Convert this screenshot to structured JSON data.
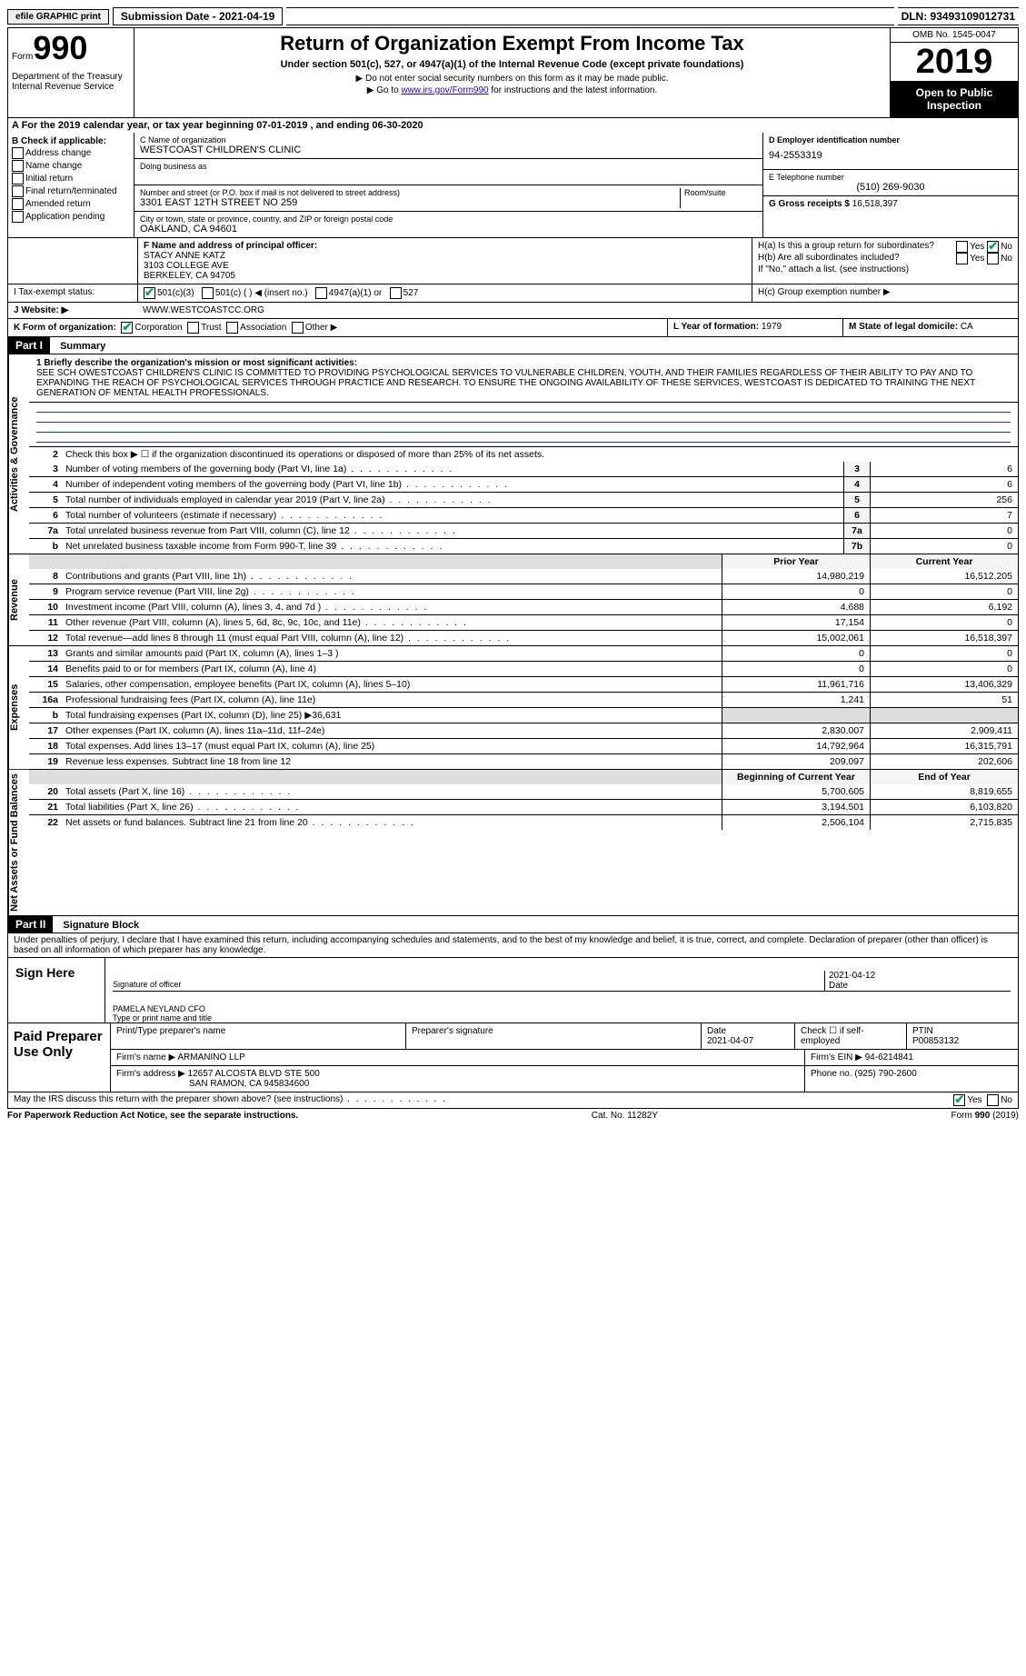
{
  "topbar": {
    "efile": "efile",
    "graphic": "GRAPHIC",
    "print": "print",
    "submission": "Submission Date - 2021-04-19",
    "dln": "DLN: 93493109012731"
  },
  "header": {
    "form_word": "Form",
    "form_num": "990",
    "dept": "Department of the Treasury\nInternal Revenue Service",
    "title": "Return of Organization Exempt From Income Tax",
    "subtitle": "Under section 501(c), 527, or 4947(a)(1) of the Internal Revenue Code (except private foundations)",
    "note1": "Do not enter social security numbers on this form as it may be made public.",
    "note2_a": "Go to ",
    "note2_link": "www.irs.gov/Form990",
    "note2_b": " for instructions and the latest information.",
    "omb": "OMB No. 1545-0047",
    "year": "2019",
    "open": "Open to Public Inspection"
  },
  "period": "A For the 2019 calendar year, or tax year beginning 07-01-2019    , and ending 06-30-2020",
  "boxB": {
    "title": "B Check if applicable:",
    "items": [
      "Address change",
      "Name change",
      "Initial return",
      "Final return/terminated",
      "Amended return",
      "Application pending"
    ]
  },
  "boxC": {
    "label": "C Name of organization",
    "name": "WESTCOAST CHILDREN'S CLINIC",
    "dba_label": "Doing business as",
    "addr_label": "Number and street (or P.O. box if mail is not delivered to street address)",
    "room_label": "Room/suite",
    "addr": "3301 EAST 12TH STREET NO 259",
    "city_label": "City or town, state or province, country, and ZIP or foreign postal code",
    "city": "OAKLAND, CA  94601"
  },
  "boxD": {
    "label": "D Employer identification number",
    "val": "94-2553319"
  },
  "boxE": {
    "label": "E Telephone number",
    "val": "(510) 269-9030"
  },
  "boxG": {
    "label": "G Gross receipts $ ",
    "val": "16,518,397"
  },
  "boxF": {
    "label": "F Name and address of principal officer:",
    "name": "STACY ANNE KATZ",
    "addr1": "3103 COLLEGE AVE",
    "addr2": "BERKELEY, CA  94705"
  },
  "boxH": {
    "a": "H(a) Is this a group return for subordinates?",
    "b": "H(b) Are all subordinates included?",
    "ifno": "If \"No,\" attach a list. (see instructions)",
    "c": "H(c) Group exemption number ▶"
  },
  "boxI": {
    "label": "I   Tax-exempt status:",
    "opts": [
      "501(c)(3)",
      "501(c) (   ) ◀ (insert no.)",
      "4947(a)(1) or",
      "527"
    ]
  },
  "boxJ": {
    "label": "J   Website: ▶",
    "val": "WWW.WESTCOASTCC.ORG"
  },
  "boxK": {
    "label": "K Form of organization:",
    "opts": [
      "Corporation",
      "Trust",
      "Association",
      "Other ▶"
    ]
  },
  "boxL": {
    "label": "L Year of formation: ",
    "val": "1979"
  },
  "boxM": {
    "label": "M State of legal domicile: ",
    "val": "CA"
  },
  "partI": {
    "title": "Part I",
    "subtitle": "Summary",
    "line1_label": "1  Briefly describe the organization's mission or most significant activities:",
    "mission": "SEE SCH OWESTCOAST CHILDREN'S CLINIC IS COMMITTED TO PROVIDING PSYCHOLOGICAL SERVICES TO VULNERABLE CHILDREN, YOUTH, AND THEIR FAMILIES REGARDLESS OF THEIR ABILITY TO PAY AND TO EXPANDING THE REACH OF PSYCHOLOGICAL SERVICES THROUGH PRACTICE AND RESEARCH. TO ENSURE THE ONGOING AVAILABILITY OF THESE SERVICES, WESTCOAST IS DEDICATED TO TRAINING THE NEXT GENERATION OF MENTAL HEALTH PROFESSIONALS.",
    "line2": "Check this box ▶ ☐ if the organization discontinued its operations or disposed of more than 25% of its net assets."
  },
  "vtabs": {
    "gov": "Activities & Governance",
    "rev": "Revenue",
    "exp": "Expenses",
    "net": "Net Assets or Fund Balances"
  },
  "gov_lines": [
    {
      "n": "3",
      "d": "Number of voting members of the governing body (Part VI, line 1a)",
      "box": "3",
      "v": "6"
    },
    {
      "n": "4",
      "d": "Number of independent voting members of the governing body (Part VI, line 1b)",
      "box": "4",
      "v": "6"
    },
    {
      "n": "5",
      "d": "Total number of individuals employed in calendar year 2019 (Part V, line 2a)",
      "box": "5",
      "v": "256"
    },
    {
      "n": "6",
      "d": "Total number of volunteers (estimate if necessary)",
      "box": "6",
      "v": "7"
    },
    {
      "n": "7a",
      "d": "Total unrelated business revenue from Part VIII, column (C), line 12",
      "box": "7a",
      "v": "0"
    },
    {
      "n": "b",
      "d": "Net unrelated business taxable income from Form 990-T, line 39",
      "box": "7b",
      "v": "0"
    }
  ],
  "col_hdrs": {
    "prior": "Prior Year",
    "current": "Current Year"
  },
  "rev_lines": [
    {
      "n": "8",
      "d": "Contributions and grants (Part VIII, line 1h)",
      "p": "14,980,219",
      "c": "16,512,205"
    },
    {
      "n": "9",
      "d": "Program service revenue (Part VIII, line 2g)",
      "p": "0",
      "c": "0"
    },
    {
      "n": "10",
      "d": "Investment income (Part VIII, column (A), lines 3, 4, and 7d )",
      "p": "4,688",
      "c": "6,192"
    },
    {
      "n": "11",
      "d": "Other revenue (Part VIII, column (A), lines 5, 6d, 8c, 9c, 10c, and 11e)",
      "p": "17,154",
      "c": "0"
    },
    {
      "n": "12",
      "d": "Total revenue—add lines 8 through 11 (must equal Part VIII, column (A), line 12)",
      "p": "15,002,061",
      "c": "16,518,397"
    }
  ],
  "exp_lines": [
    {
      "n": "13",
      "d": "Grants and similar amounts paid (Part IX, column (A), lines 1–3 )",
      "p": "0",
      "c": "0"
    },
    {
      "n": "14",
      "d": "Benefits paid to or for members (Part IX, column (A), line 4)",
      "p": "0",
      "c": "0"
    },
    {
      "n": "15",
      "d": "Salaries, other compensation, employee benefits (Part IX, column (A), lines 5–10)",
      "p": "11,961,716",
      "c": "13,406,329"
    },
    {
      "n": "16a",
      "d": "Professional fundraising fees (Part IX, column (A), line 11e)",
      "p": "1,241",
      "c": "51"
    },
    {
      "n": "b",
      "d": "Total fundraising expenses (Part IX, column (D), line 25) ▶36,631",
      "p": "",
      "c": "",
      "shade": true
    },
    {
      "n": "17",
      "d": "Other expenses (Part IX, column (A), lines 11a–11d, 11f–24e)",
      "p": "2,830,007",
      "c": "2,909,411"
    },
    {
      "n": "18",
      "d": "Total expenses. Add lines 13–17 (must equal Part IX, column (A), line 25)",
      "p": "14,792,964",
      "c": "16,315,791"
    },
    {
      "n": "19",
      "d": "Revenue less expenses. Subtract line 18 from line 12",
      "p": "209,097",
      "c": "202,606"
    }
  ],
  "net_hdrs": {
    "beg": "Beginning of Current Year",
    "end": "End of Year"
  },
  "net_lines": [
    {
      "n": "20",
      "d": "Total assets (Part X, line 16)",
      "p": "5,700,605",
      "c": "8,819,655"
    },
    {
      "n": "21",
      "d": "Total liabilities (Part X, line 26)",
      "p": "3,194,501",
      "c": "6,103,820"
    },
    {
      "n": "22",
      "d": "Net assets or fund balances. Subtract line 21 from line 20",
      "p": "2,506,104",
      "c": "2,715,835"
    }
  ],
  "partII": {
    "title": "Part II",
    "subtitle": "Signature Block",
    "decl": "Under penalties of perjury, I declare that I have examined this return, including accompanying schedules and statements, and to the best of my knowledge and belief, it is true, correct, and complete. Declaration of preparer (other than officer) is based on all information of which preparer has any knowledge."
  },
  "sign": {
    "here": "Sign Here",
    "sig_label": "Signature of officer",
    "date": "2021-04-12",
    "date_label": "Date",
    "name": "PAMELA NEYLAND  CFO",
    "name_label": "Type or print name and title"
  },
  "paid": {
    "title": "Paid Preparer Use Only",
    "r1": {
      "a": "Print/Type preparer's name",
      "b": "Preparer's signature",
      "c_label": "Date",
      "c": "2021-04-07",
      "d": "Check ☐ if self-employed",
      "e_label": "PTIN",
      "e": "P00853132"
    },
    "r2": {
      "a": "Firm's name    ▶ ",
      "a_val": "ARMANINO LLP",
      "b": "Firm's EIN ▶ ",
      "b_val": "94-6214841"
    },
    "r3": {
      "a": "Firm's address ▶ ",
      "a_val": "12657 ALCOSTA BLVD STE 500",
      "a_val2": "SAN RAMON, CA  945834600",
      "b": "Phone no. ",
      "b_val": "(925) 790-2600"
    }
  },
  "discuss": {
    "q": "May the IRS discuss this return with the preparer shown above? (see instructions)",
    "yes": "Yes",
    "no": "No"
  },
  "footer": {
    "a": "For Paperwork Reduction Act Notice, see the separate instructions.",
    "b": "Cat. No. 11282Y",
    "c": "Form 990 (2019)"
  }
}
